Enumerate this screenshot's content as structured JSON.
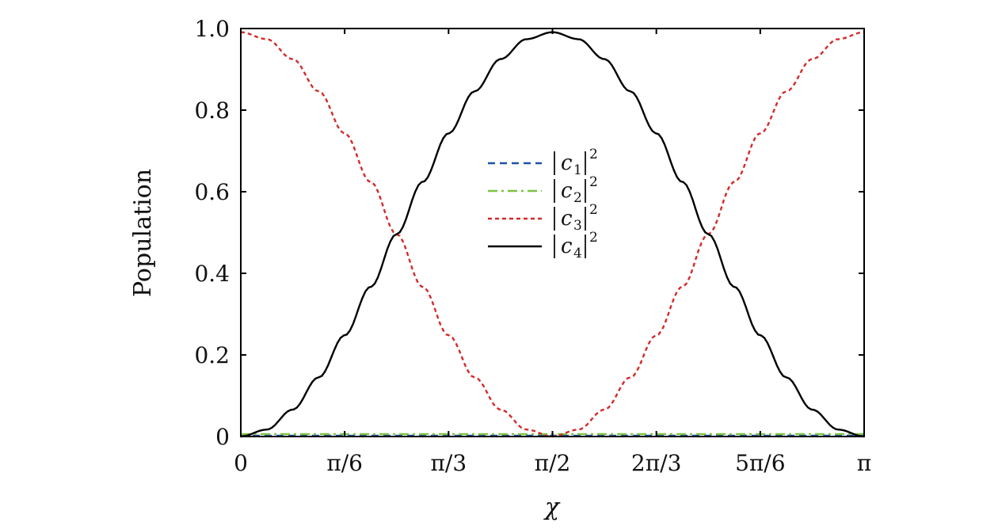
{
  "chart_data": {
    "type": "line",
    "xlabel": "χ",
    "ylabel": "Population",
    "xlim": [
      0,
      3.14159265
    ],
    "ylim": [
      0,
      1.0
    ],
    "x_ticks": [
      {
        "value": 0,
        "label": "0"
      },
      {
        "value": 0.5235988,
        "label": "π/6"
      },
      {
        "value": 1.0471976,
        "label": "π/3"
      },
      {
        "value": 1.5707963,
        "label": "π/2"
      },
      {
        "value": 2.0943951,
        "label": "2π/3"
      },
      {
        "value": 2.6179939,
        "label": "5π/6"
      },
      {
        "value": 3.14159265,
        "label": "π"
      }
    ],
    "y_ticks": [
      {
        "value": 0,
        "label": "0"
      },
      {
        "value": 0.2,
        "label": "0.2"
      },
      {
        "value": 0.4,
        "label": "0.4"
      },
      {
        "value": 0.6,
        "label": "0.6"
      },
      {
        "value": 0.8,
        "label": "0.8"
      },
      {
        "value": 1.0,
        "label": "1.0"
      }
    ],
    "grid": false,
    "legend_position": "center",
    "x": [
      0,
      0.1309,
      0.2618,
      0.3927,
      0.5236,
      0.6545,
      0.7854,
      0.9163,
      1.0472,
      1.1781,
      1.309,
      1.4399,
      1.5708,
      1.7017,
      1.8326,
      1.9635,
      2.0944,
      2.2253,
      2.3562,
      2.4871,
      2.618,
      2.7489,
      2.8798,
      3.0107,
      3.1416
    ],
    "series": [
      {
        "name": "|c1|²",
        "base": "c",
        "sub": "1",
        "sup": "2",
        "color": "#1f4fa8",
        "dash": "9,6",
        "values": [
          0.002,
          0.002,
          0.002,
          0.002,
          0.002,
          0.002,
          0.002,
          0.002,
          0.002,
          0.002,
          0.002,
          0.002,
          0.002,
          0.002,
          0.002,
          0.002,
          0.002,
          0.002,
          0.002,
          0.002,
          0.002,
          0.002,
          0.002,
          0.002,
          0.002
        ]
      },
      {
        "name": "|c2|²",
        "base": "c",
        "sub": "2",
        "sup": "2",
        "color": "#7cc242",
        "dash": "12,5,3,5",
        "values": [
          0.006,
          0.006,
          0.006,
          0.006,
          0.006,
          0.006,
          0.006,
          0.006,
          0.006,
          0.006,
          0.006,
          0.006,
          0.006,
          0.006,
          0.006,
          0.006,
          0.006,
          0.006,
          0.006,
          0.006,
          0.006,
          0.006,
          0.006,
          0.006,
          0.006
        ]
      },
      {
        "name": "|c3|²",
        "base": "c",
        "sub": "3",
        "sup": "2",
        "color": "#d42a2a",
        "dash": "5,4",
        "values": [
          0.991,
          0.974,
          0.925,
          0.846,
          0.743,
          0.624,
          0.496,
          0.367,
          0.248,
          0.145,
          0.066,
          0.017,
          0.0,
          0.017,
          0.066,
          0.145,
          0.248,
          0.367,
          0.496,
          0.624,
          0.743,
          0.846,
          0.925,
          0.974,
          0.991
        ]
      },
      {
        "name": "|c4|²",
        "base": "c",
        "sub": "4",
        "sup": "2",
        "color": "#000000",
        "dash": "",
        "values": [
          0.0,
          0.017,
          0.066,
          0.145,
          0.248,
          0.367,
          0.496,
          0.624,
          0.743,
          0.846,
          0.925,
          0.974,
          0.991,
          0.974,
          0.925,
          0.846,
          0.743,
          0.624,
          0.496,
          0.367,
          0.248,
          0.145,
          0.066,
          0.017,
          0.0
        ]
      }
    ]
  }
}
